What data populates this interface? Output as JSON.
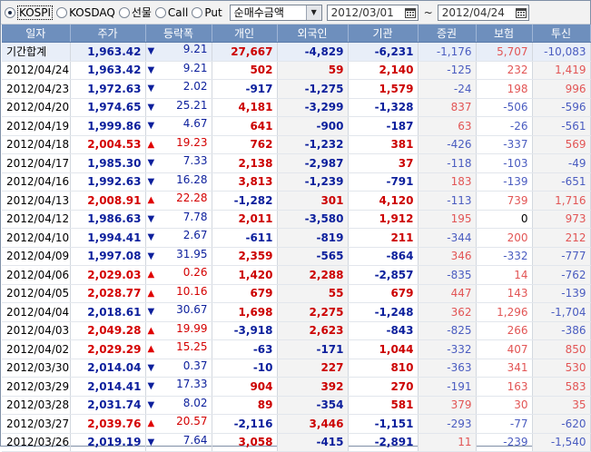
{
  "toolbar": {
    "markets": [
      {
        "label": "KOSPI",
        "checked": true
      },
      {
        "label": "KOSDAQ",
        "checked": false
      },
      {
        "label": "선물",
        "checked": false
      },
      {
        "label": "Call",
        "checked": false
      },
      {
        "label": "Put",
        "checked": false
      }
    ],
    "mode_select": "순매수금액",
    "start_date": "2012/03/01",
    "separator": "~",
    "end_date": "2012/04/24"
  },
  "columns": [
    "일자",
    "주가",
    "등락폭",
    "개인",
    "외국인",
    "기관",
    "증권",
    "보험",
    "투신"
  ],
  "rows": [
    {
      "date": "기간합계",
      "price": "1,963.42",
      "pdir": "down",
      "chg": "9.21",
      "cdir": "down",
      "retail": "27,667",
      "foreign": "-4,829",
      "inst": "-6,231",
      "sec": "-1,176",
      "ins": "5,707",
      "trust": "-10,083",
      "total": true
    },
    {
      "date": "2012/04/24",
      "price": "1,963.42",
      "pdir": "down",
      "chg": "9.21",
      "cdir": "down",
      "retail": "502",
      "foreign": "59",
      "inst": "2,140",
      "sec": "-125",
      "ins": "232",
      "trust": "1,419"
    },
    {
      "date": "2012/04/23",
      "price": "1,972.63",
      "pdir": "down",
      "chg": "2.02",
      "cdir": "down",
      "retail": "-917",
      "foreign": "-1,275",
      "inst": "1,579",
      "sec": "-24",
      "ins": "198",
      "trust": "996"
    },
    {
      "date": "2012/04/20",
      "price": "1,974.65",
      "pdir": "down",
      "chg": "25.21",
      "cdir": "down",
      "retail": "4,181",
      "foreign": "-3,299",
      "inst": "-1,328",
      "sec": "837",
      "ins": "-506",
      "trust": "-596"
    },
    {
      "date": "2012/04/19",
      "price": "1,999.86",
      "pdir": "down",
      "chg": "4.67",
      "cdir": "down",
      "retail": "641",
      "foreign": "-900",
      "inst": "-187",
      "sec": "63",
      "ins": "-26",
      "trust": "-561"
    },
    {
      "date": "2012/04/18",
      "price": "2,004.53",
      "pdir": "up",
      "chg": "19.23",
      "cdir": "up",
      "retail": "762",
      "foreign": "-1,232",
      "inst": "381",
      "sec": "-426",
      "ins": "-337",
      "trust": "569"
    },
    {
      "date": "2012/04/17",
      "price": "1,985.30",
      "pdir": "down",
      "chg": "7.33",
      "cdir": "down",
      "retail": "2,138",
      "foreign": "-2,987",
      "inst": "37",
      "sec": "-118",
      "ins": "-103",
      "trust": "-49"
    },
    {
      "date": "2012/04/16",
      "price": "1,992.63",
      "pdir": "down",
      "chg": "16.28",
      "cdir": "down",
      "retail": "3,813",
      "foreign": "-1,239",
      "inst": "-791",
      "sec": "183",
      "ins": "-139",
      "trust": "-651"
    },
    {
      "date": "2012/04/13",
      "price": "2,008.91",
      "pdir": "up",
      "chg": "22.28",
      "cdir": "up",
      "retail": "-1,282",
      "foreign": "301",
      "inst": "4,120",
      "sec": "-113",
      "ins": "739",
      "trust": "1,716"
    },
    {
      "date": "2012/04/12",
      "price": "1,986.63",
      "pdir": "down",
      "chg": "7.78",
      "cdir": "down",
      "retail": "2,011",
      "foreign": "-3,580",
      "inst": "1,912",
      "sec": "195",
      "ins": "0",
      "trust": "973"
    },
    {
      "date": "2012/04/10",
      "price": "1,994.41",
      "pdir": "down",
      "chg": "2.67",
      "cdir": "down",
      "retail": "-611",
      "foreign": "-819",
      "inst": "211",
      "sec": "-344",
      "ins": "200",
      "trust": "212"
    },
    {
      "date": "2012/04/09",
      "price": "1,997.08",
      "pdir": "down",
      "chg": "31.95",
      "cdir": "down",
      "retail": "2,359",
      "foreign": "-565",
      "inst": "-864",
      "sec": "346",
      "ins": "-332",
      "trust": "-777"
    },
    {
      "date": "2012/04/06",
      "price": "2,029.03",
      "pdir": "up",
      "chg": "0.26",
      "cdir": "up",
      "retail": "1,420",
      "foreign": "2,288",
      "inst": "-2,857",
      "sec": "-835",
      "ins": "14",
      "trust": "-762"
    },
    {
      "date": "2012/04/05",
      "price": "2,028.77",
      "pdir": "up",
      "chg": "10.16",
      "cdir": "up",
      "retail": "679",
      "foreign": "55",
      "inst": "679",
      "sec": "447",
      "ins": "143",
      "trust": "-139"
    },
    {
      "date": "2012/04/04",
      "price": "2,018.61",
      "pdir": "down",
      "chg": "30.67",
      "cdir": "down",
      "retail": "1,698",
      "foreign": "2,275",
      "inst": "-1,248",
      "sec": "362",
      "ins": "1,296",
      "trust": "-1,704"
    },
    {
      "date": "2012/04/03",
      "price": "2,049.28",
      "pdir": "up",
      "chg": "19.99",
      "cdir": "up",
      "retail": "-3,918",
      "foreign": "2,623",
      "inst": "-843",
      "sec": "-825",
      "ins": "266",
      "trust": "-386"
    },
    {
      "date": "2012/04/02",
      "price": "2,029.29",
      "pdir": "up",
      "chg": "15.25",
      "cdir": "up",
      "retail": "-63",
      "foreign": "-171",
      "inst": "1,044",
      "sec": "-332",
      "ins": "407",
      "trust": "850"
    },
    {
      "date": "2012/03/30",
      "price": "2,014.04",
      "pdir": "down",
      "chg": "0.37",
      "cdir": "down",
      "retail": "-10",
      "foreign": "227",
      "inst": "810",
      "sec": "-363",
      "ins": "341",
      "trust": "530"
    },
    {
      "date": "2012/03/29",
      "price": "2,014.41",
      "pdir": "down",
      "chg": "17.33",
      "cdir": "down",
      "retail": "904",
      "foreign": "392",
      "inst": "270",
      "sec": "-191",
      "ins": "163",
      "trust": "583"
    },
    {
      "date": "2012/03/28",
      "price": "2,031.74",
      "pdir": "down",
      "chg": "8.02",
      "cdir": "down",
      "retail": "89",
      "foreign": "-354",
      "inst": "581",
      "sec": "379",
      "ins": "30",
      "trust": "35"
    },
    {
      "date": "2012/03/27",
      "price": "2,039.76",
      "pdir": "up",
      "chg": "20.57",
      "cdir": "up",
      "retail": "-2,116",
      "foreign": "3,446",
      "inst": "-1,151",
      "sec": "-293",
      "ins": "-77",
      "trust": "-620"
    },
    {
      "date": "2012/03/26",
      "price": "2,019.19",
      "pdir": "down",
      "chg": "7.64",
      "cdir": "down",
      "retail": "3,058",
      "foreign": "-415",
      "inst": "-2,891",
      "sec": "11",
      "ins": "-239",
      "trust": "-1,540"
    }
  ]
}
